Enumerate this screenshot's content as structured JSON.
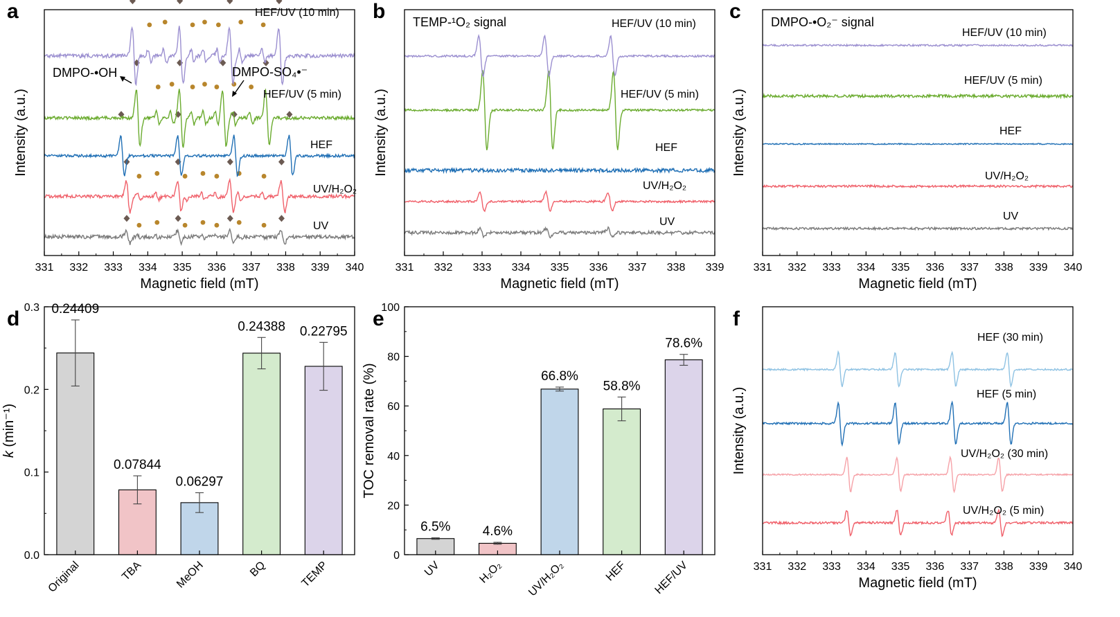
{
  "chart_data": [
    {
      "id": "a",
      "panel_label": "a",
      "type": "line",
      "xlabel": "Magnetic field (mT)",
      "ylabel": "Intensity (a.u.)",
      "xlim": [
        331,
        340
      ],
      "x_ticks": [
        331,
        332,
        333,
        334,
        335,
        336,
        337,
        338,
        339,
        340
      ],
      "annotations": [
        {
          "text": "DMPO-•OH",
          "x": 332.2,
          "level": 6.2
        },
        {
          "text": "DMPO-SO₄•⁻",
          "x": 337.1,
          "level": 6.2
        }
      ],
      "series": [
        {
          "name": "UV",
          "color": "#7a7a7a",
          "baseline": 0,
          "amp": 0.25,
          "noise": 0.07,
          "peaks": [
            333.43,
            334.92,
            336.43,
            337.92
          ],
          "sulfate": [
            333.75,
            334.27,
            335.08,
            335.6,
            336.0,
            336.65,
            337.37
          ],
          "markers": true
        },
        {
          "name": "UV/H₂O₂",
          "color": "#f0606a",
          "baseline": 1.5,
          "amp": 0.6,
          "noise": 0.06,
          "peaks": [
            333.43,
            334.92,
            336.43,
            337.92
          ],
          "sulfate": [
            333.75,
            334.27,
            335.08,
            335.6,
            336.0,
            336.65,
            337.37
          ],
          "markers": true
        },
        {
          "name": "HEF",
          "color": "#1f6fb5",
          "baseline": 3.0,
          "amp": 0.75,
          "noise": 0.05,
          "peaks": [
            333.27,
            334.92,
            336.55,
            338.15
          ],
          "sulfate": [],
          "markers": true
        },
        {
          "name": "HEF/UV (5 min)",
          "color": "#6aab2e",
          "baseline": 4.4,
          "amp": 1.05,
          "noise": 0.06,
          "peaks": [
            333.72,
            334.97,
            336.22,
            337.47
          ],
          "sulfate": [
            334.3,
            334.7,
            335.3,
            335.65,
            336.0,
            336.5,
            337.0
          ],
          "markers": true
        },
        {
          "name": "HEF/UV (10 min)",
          "color": "#9b8fd0",
          "baseline": 6.7,
          "amp": 1.05,
          "noise": 0.07,
          "peaks": [
            333.6,
            334.97,
            336.42,
            337.85
          ],
          "sulfate": [
            334.05,
            334.5,
            335.3,
            335.65,
            336.05,
            336.7,
            337.35
          ],
          "markers": true
        }
      ]
    },
    {
      "id": "b",
      "panel_label": "b",
      "type": "line",
      "title": "TEMP-¹O₂ signal",
      "xlabel": "Magnetic field (mT)",
      "ylabel": "Intensity (a.u.)",
      "xlim": [
        331,
        339
      ],
      "x_ticks": [
        331,
        332,
        333,
        334,
        335,
        336,
        337,
        338,
        339
      ],
      "series": [
        {
          "name": "UV",
          "color": "#7a7a7a",
          "baseline": 0,
          "amp": 0.2,
          "noise": 0.08,
          "peaks": [
            333.0,
            334.7,
            336.3
          ],
          "sulfate": [],
          "markers": false
        },
        {
          "name": "UV/H₂O₂",
          "color": "#f0606a",
          "baseline": 1.5,
          "amp": 0.45,
          "noise": 0.05,
          "peaks": [
            333.0,
            334.7,
            336.3
          ],
          "sulfate": [],
          "markers": false
        },
        {
          "name": "HEF",
          "color": "#1f6fb5",
          "baseline": 3.0,
          "amp": 0.0,
          "noise": 0.09,
          "peaks": [],
          "sulfate": [],
          "markers": false
        },
        {
          "name": "HEF/UV (5 min)",
          "color": "#6aab2e",
          "baseline": 5.9,
          "amp": 1.9,
          "noise": 0.05,
          "peaks": [
            333.07,
            334.77,
            336.44
          ],
          "sulfate": [],
          "markers": false
        },
        {
          "name": "HEF/UV (10 min)",
          "color": "#9b8fd0",
          "baseline": 8.5,
          "amp": 0.95,
          "noise": 0.05,
          "peaks": [
            332.97,
            334.67,
            336.37
          ],
          "sulfate": [],
          "markers": false
        }
      ]
    },
    {
      "id": "c",
      "panel_label": "c",
      "type": "line",
      "title": "DMPO-•O₂⁻ signal",
      "xlabel": "Magnetic field (mT)",
      "ylabel": "Intensity (a.u.)",
      "xlim": [
        331,
        340
      ],
      "x_ticks": [
        331,
        332,
        333,
        334,
        335,
        336,
        337,
        338,
        339,
        340
      ],
      "series": [
        {
          "name": "UV",
          "color": "#7a7a7a",
          "baseline": 0,
          "amp": 0,
          "noise": 0.04,
          "peaks": [],
          "sulfate": [],
          "markers": false
        },
        {
          "name": "UV/H₂O₂",
          "color": "#f0606a",
          "baseline": 1.5,
          "amp": 0,
          "noise": 0.04,
          "peaks": [],
          "sulfate": [],
          "markers": false
        },
        {
          "name": "HEF",
          "color": "#1f6fb5",
          "baseline": 3.0,
          "amp": 0,
          "noise": 0.02,
          "peaks": [],
          "sulfate": [],
          "markers": false
        },
        {
          "name": "HEF/UV (5 min)",
          "color": "#6aab2e",
          "baseline": 4.7,
          "amp": 0,
          "noise": 0.05,
          "peaks": [],
          "sulfate": [],
          "markers": false
        },
        {
          "name": "HEF/UV (10 min)",
          "color": "#9b8fd0",
          "baseline": 6.5,
          "amp": 0,
          "noise": 0.03,
          "peaks": [],
          "sulfate": [],
          "markers": false
        }
      ]
    },
    {
      "id": "d",
      "panel_label": "d",
      "type": "bar",
      "ylabel": "k (min⁻¹)",
      "ylim": [
        0,
        0.3
      ],
      "y_ticks": [
        0.0,
        0.1,
        0.2,
        0.3
      ],
      "categories": [
        "Original",
        "TBA",
        "MeOH",
        "BQ",
        "TEMP"
      ],
      "values": [
        0.24409,
        0.07844,
        0.06297,
        0.24388,
        0.22795
      ],
      "errors": [
        0.04,
        0.017,
        0.012,
        0.019,
        0.029
      ],
      "value_labels": [
        "0.24409",
        "0.07844",
        "0.06297",
        "0.24388",
        "0.22795"
      ],
      "colors": [
        "#d4d4d4",
        "#f1c4c7",
        "#c0d6ea",
        "#d4ebcd",
        "#dcd4ea"
      ]
    },
    {
      "id": "e",
      "panel_label": "e",
      "type": "bar",
      "ylabel": "TOC removal rate (%)",
      "ylim": [
        0,
        100
      ],
      "y_ticks": [
        0,
        20,
        40,
        60,
        80,
        100
      ],
      "categories": [
        "UV",
        "H₂O₂",
        "UV/H₂O₂",
        "HEF",
        "HEF/UV"
      ],
      "values": [
        6.5,
        4.6,
        66.8,
        58.8,
        78.6
      ],
      "errors": [
        0.3,
        0.4,
        0.8,
        4.8,
        2.2
      ],
      "value_labels": [
        "6.5%",
        "4.6%",
        "66.8%",
        "58.8%",
        "78.6%"
      ],
      "colors": [
        "#d4d4d4",
        "#f1c4c7",
        "#c0d6ea",
        "#d4ebcd",
        "#dcd4ea"
      ]
    },
    {
      "id": "f",
      "panel_label": "f",
      "type": "line",
      "xlabel": "Magnetic field (mT)",
      "ylabel": "Intensity (a.u.)",
      "xlim": [
        331,
        340
      ],
      "x_ticks": [
        331,
        332,
        333,
        334,
        335,
        336,
        337,
        338,
        339,
        340
      ],
      "series": [
        {
          "name": "UV/H₂O₂ (5 min)",
          "color": "#f0606a",
          "baseline": 0,
          "amp": 0.45,
          "noise": 0.04,
          "peaks": [
            333.5,
            334.95,
            336.43,
            337.9
          ],
          "sulfate": [],
          "markers": false
        },
        {
          "name": "UV/H₂O₂ (30 min)",
          "color": "#f6a2a8",
          "baseline": 1.7,
          "amp": 0.6,
          "noise": 0.025,
          "peaks": [
            333.5,
            334.95,
            336.5,
            337.9
          ],
          "sulfate": [],
          "markers": false
        },
        {
          "name": "HEF (5 min)",
          "color": "#1f6fb5",
          "baseline": 3.5,
          "amp": 0.75,
          "noise": 0.035,
          "peaks": [
            333.25,
            334.9,
            336.55,
            338.15
          ],
          "sulfate": [],
          "markers": false
        },
        {
          "name": "HEF (30 min)",
          "color": "#8ec2e3",
          "baseline": 5.4,
          "amp": 0.6,
          "noise": 0.03,
          "peaks": [
            333.25,
            334.9,
            336.55,
            338.15
          ],
          "sulfate": [],
          "markers": false
        }
      ]
    }
  ]
}
